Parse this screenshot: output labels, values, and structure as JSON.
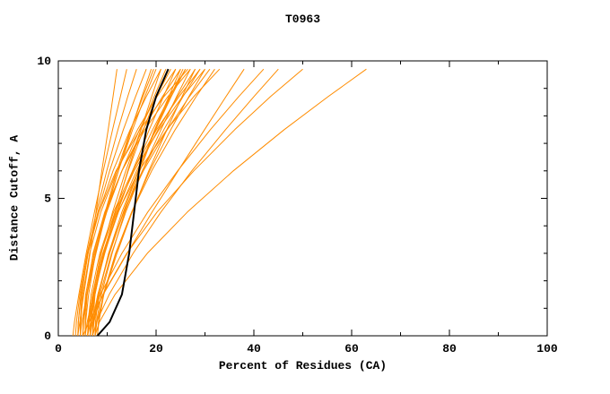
{
  "chart_data": {
    "type": "line",
    "title": "T0963",
    "xlabel": "Percent of Residues (CA)",
    "ylabel": "Distance Cutoff, A",
    "xlim": [
      0,
      100
    ],
    "ylim": [
      0,
      10
    ],
    "grid": false,
    "legend": "none",
    "x_ticks_major": [
      0,
      20,
      40,
      60,
      80,
      100
    ],
    "x_ticks_minor": [
      10,
      30,
      50,
      70,
      90
    ],
    "y_ticks_major": [
      0,
      5,
      10
    ],
    "y_ticks_minor": [
      1,
      2,
      3,
      4,
      6,
      7,
      8,
      9
    ],
    "colors": {
      "model": "#FF8C00",
      "highlight": "#000000",
      "axis": "#000000",
      "background": "#FFFFFF"
    },
    "cutoffs": [
      0,
      0.5,
      1.5,
      3,
      4.5,
      6,
      7.5,
      8.7,
      9.7
    ],
    "model_curves_percents": [
      [
        3.0,
        3.3,
        4.2,
        5.7,
        7.4,
        9.2,
        11.1,
        12.7,
        14.0
      ],
      [
        3.5,
        3.7,
        4.4,
        5.9,
        7.8,
        9.9,
        12.2,
        14.2,
        16.0
      ],
      [
        4.0,
        4.1,
        4.7,
        6.1,
        8.1,
        10.5,
        13.3,
        15.8,
        18.0
      ],
      [
        4.5,
        4.8,
        5.8,
        7.7,
        9.8,
        12.3,
        14.9,
        17.1,
        19.0
      ],
      [
        5.0,
        5.2,
        5.9,
        7.6,
        9.7,
        12.3,
        15.2,
        17.7,
        20.0
      ],
      [
        4.0,
        4.1,
        4.6,
        6.1,
        8.3,
        11.2,
        14.7,
        18.0,
        21.0
      ],
      [
        5.5,
        5.9,
        7.2,
        9.3,
        11.7,
        14.2,
        16.9,
        19.1,
        21.0
      ],
      [
        6.0,
        6.2,
        7.0,
        8.8,
        11.1,
        13.8,
        16.9,
        19.6,
        22.0
      ],
      [
        5.0,
        5.1,
        5.8,
        7.4,
        9.9,
        13.0,
        16.6,
        20.0,
        23.0
      ],
      [
        4.5,
        4.6,
        5.0,
        6.4,
        8.7,
        12.0,
        16.2,
        20.2,
        24.0
      ],
      [
        6.0,
        6.3,
        7.3,
        9.5,
        12.1,
        15.2,
        18.6,
        21.5,
        24.0
      ],
      [
        6.5,
        6.9,
        8.1,
        10.5,
        13.3,
        16.4,
        19.7,
        22.6,
        25.0
      ],
      [
        5.0,
        5.1,
        5.6,
        7.2,
        9.7,
        13.0,
        17.3,
        21.3,
        25.0
      ],
      [
        7.0,
        7.2,
        8.2,
        10.3,
        13.0,
        16.3,
        19.9,
        23.1,
        26.0
      ],
      [
        6.0,
        6.2,
        7.0,
        9.1,
        11.9,
        15.3,
        19.3,
        22.8,
        26.0
      ],
      [
        5.5,
        5.5,
        5.9,
        7.1,
        9.5,
        13.0,
        17.7,
        22.4,
        27.0
      ],
      [
        7.0,
        7.3,
        8.5,
        10.9,
        13.8,
        17.2,
        21.0,
        24.2,
        27.0
      ],
      [
        6.5,
        6.6,
        7.4,
        9.4,
        12.3,
        16.0,
        20.4,
        24.4,
        28.0
      ],
      [
        7.5,
        7.9,
        9.3,
        12.0,
        15.1,
        18.5,
        22.2,
        25.3,
        28.0
      ],
      [
        6.0,
        6.1,
        6.7,
        8.5,
        11.3,
        15.2,
        20.1,
        24.7,
        29.0
      ],
      [
        7.0,
        7.2,
        8.1,
        10.4,
        13.4,
        17.2,
        21.6,
        25.5,
        29.0
      ],
      [
        8.0,
        8.3,
        9.3,
        11.8,
        15.0,
        18.7,
        23.0,
        26.7,
        30.0
      ],
      [
        6.5,
        6.6,
        7.1,
        8.7,
        11.6,
        15.5,
        20.6,
        25.4,
        30.0
      ],
      [
        7.5,
        7.6,
        8.3,
        10.3,
        13.4,
        17.4,
        22.3,
        26.8,
        31.0
      ],
      [
        8.0,
        8.2,
        9.2,
        11.7,
        15.0,
        19.1,
        23.9,
        28.2,
        32.0
      ],
      [
        7.0,
        7.1,
        7.5,
        9.2,
        12.2,
        16.5,
        22.2,
        27.7,
        33.0
      ],
      [
        5.0,
        6.3,
        9.2,
        14.1,
        19.2,
        24.5,
        29.9,
        34.3,
        38.0
      ],
      [
        6.0,
        6.6,
        8.6,
        13.0,
        18.3,
        24.4,
        31.1,
        36.9,
        42.0
      ],
      [
        7.0,
        7.8,
        10.4,
        15.3,
        21.0,
        27.3,
        34.2,
        40.0,
        45.0
      ],
      [
        6.5,
        7.0,
        9.1,
        14.0,
        20.2,
        27.7,
        36.1,
        43.4,
        50.0
      ],
      [
        7.5,
        8.4,
        11.6,
        18.2,
        26.4,
        35.8,
        46.2,
        55.2,
        63.0
      ],
      [
        4.0,
        4.4,
        5.2,
        6.5,
        7.7,
        8.9,
        10.2,
        11.2,
        12.0
      ],
      [
        5.5,
        5.6,
        6.2,
        7.6,
        9.6,
        12.0,
        14.8,
        17.3,
        19.5
      ],
      [
        6.5,
        6.7,
        7.5,
        9.3,
        11.6,
        14.3,
        17.4,
        20.1,
        22.5
      ],
      [
        7.5,
        7.8,
        8.8,
        11.0,
        13.6,
        16.7,
        19.8,
        22.9,
        25.5
      ],
      [
        4.5,
        4.5,
        4.8,
        6.0,
        8.3,
        11.8,
        16.7,
        21.6,
        26.5
      ]
    ],
    "highlight_curve_percents": [
      8.0,
      10.5,
      13.0,
      14.5,
      15.5,
      16.5,
      18.0,
      20.0,
      22.5
    ]
  }
}
